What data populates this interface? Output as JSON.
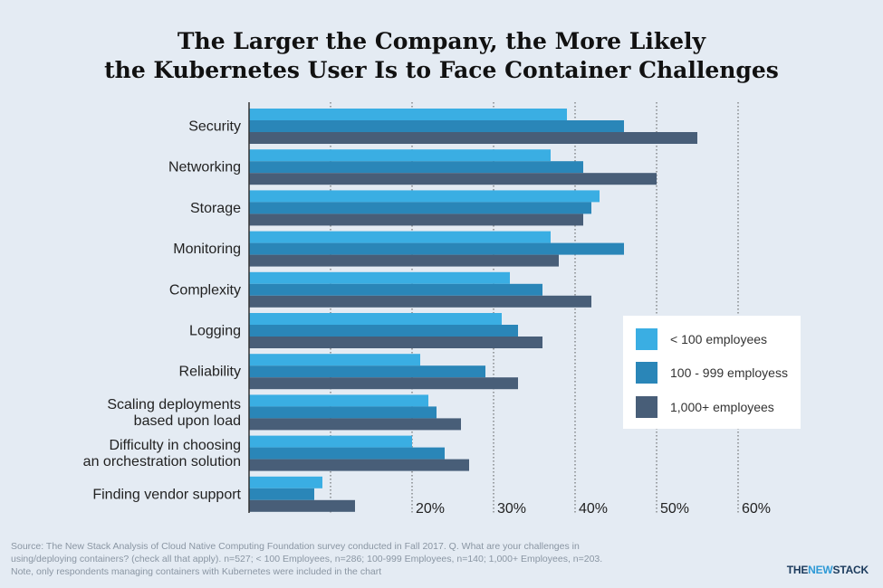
{
  "chart_data": {
    "type": "bar",
    "orientation": "horizontal",
    "title": [
      "The Larger the Company, the More Likely",
      "the Kubernetes User Is to Face Container Challenges"
    ],
    "categories": [
      [
        "Security"
      ],
      [
        "Networking"
      ],
      [
        "Storage"
      ],
      [
        "Monitoring"
      ],
      [
        "Complexity"
      ],
      [
        "Logging"
      ],
      [
        "Reliability"
      ],
      [
        "Scaling deployments",
        "based upon load"
      ],
      [
        "Difficulty in choosing",
        "an orchestration solution"
      ],
      [
        "Finding vendor support"
      ]
    ],
    "series": [
      {
        "name": "< 100 employees",
        "color": "#3aaee3",
        "values": [
          39,
          37,
          43,
          37,
          32,
          31,
          21,
          22,
          20,
          9
        ]
      },
      {
        "name": "100 - 999 employess",
        "color": "#2a86b8",
        "values": [
          46,
          41,
          42,
          46,
          36,
          33,
          29,
          23,
          24,
          8
        ]
      },
      {
        "name": "1,000+ employees",
        "color": "#485e78",
        "values": [
          55,
          50,
          41,
          38,
          42,
          36,
          33,
          26,
          27,
          13
        ]
      }
    ],
    "x_ticks": [
      "20%",
      "30%",
      "40%",
      "50%",
      "60%"
    ],
    "x_tick_values": [
      20,
      30,
      40,
      50,
      60
    ],
    "xlim": [
      0,
      60
    ],
    "grid": "vertical dotted",
    "legend_position": "right"
  },
  "legend": {
    "items": [
      "< 100 employees",
      "100 - 999 employess",
      "1,000+ employees"
    ]
  },
  "source": {
    "lines": [
      "Source: The New Stack Analysis of Cloud Native Computing Foundation survey conducted in Fall 2017. Q. What are your challenges in",
      "using/deploying containers? (check all that apply). n=527; < 100 Employees, n=286; 100-999 Employees, n=140; 1,000+ Employees, n=203.",
      "Note, only respondents managing containers with Kubernetes were included in the chart"
    ]
  },
  "brand": {
    "part1": "THE",
    "part2": "NEW",
    "part3": "STACK"
  }
}
